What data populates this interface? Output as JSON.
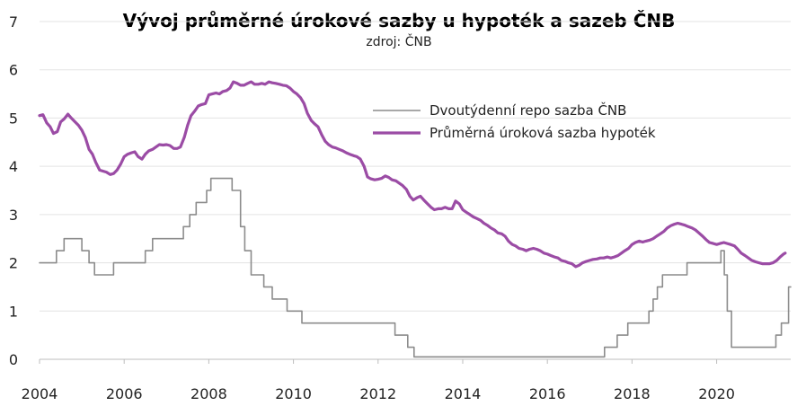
{
  "chart_data": {
    "type": "line",
    "title": "Vývoj průměrné úrokové sazby u hypoték a sazeb ČNB",
    "subtitle": "zdroj: ČNB",
    "xlabel": "",
    "ylabel": "",
    "xlim": [
      2004,
      2021.75
    ],
    "ylim": [
      0,
      7
    ],
    "x_ticks": [
      "2004",
      "2006",
      "2008",
      "2010",
      "2012",
      "2014",
      "2016",
      "2018",
      "2020"
    ],
    "y_ticks": [
      "0",
      "1",
      "2",
      "3",
      "4",
      "5",
      "6",
      "7"
    ],
    "grid": "horizontal",
    "legend_position": "top-right",
    "series": [
      {
        "name": "Dvoutýdenní repo sazba ČNB",
        "color": "#8c8c8c",
        "step": true,
        "points": [
          [
            2004.0,
            2.0
          ],
          [
            2004.4,
            2.25
          ],
          [
            2004.58,
            2.5
          ],
          [
            2005.0,
            2.25
          ],
          [
            2005.17,
            2.0
          ],
          [
            2005.3,
            1.75
          ],
          [
            2005.75,
            2.0
          ],
          [
            2006.5,
            2.25
          ],
          [
            2006.67,
            2.5
          ],
          [
            2007.4,
            2.75
          ],
          [
            2007.55,
            3.0
          ],
          [
            2007.7,
            3.25
          ],
          [
            2007.95,
            3.5
          ],
          [
            2008.05,
            3.75
          ],
          [
            2008.55,
            3.5
          ],
          [
            2008.75,
            2.75
          ],
          [
            2008.85,
            2.25
          ],
          [
            2009.0,
            1.75
          ],
          [
            2009.3,
            1.5
          ],
          [
            2009.5,
            1.25
          ],
          [
            2009.85,
            1.0
          ],
          [
            2010.2,
            0.75
          ],
          [
            2012.4,
            0.5
          ],
          [
            2012.7,
            0.25
          ],
          [
            2012.85,
            0.05
          ],
          [
            2017.35,
            0.25
          ],
          [
            2017.65,
            0.5
          ],
          [
            2017.9,
            0.75
          ],
          [
            2018.4,
            1.0
          ],
          [
            2018.5,
            1.25
          ],
          [
            2018.6,
            1.5
          ],
          [
            2018.72,
            1.75
          ],
          [
            2019.3,
            2.0
          ],
          [
            2020.1,
            2.25
          ],
          [
            2020.18,
            1.75
          ],
          [
            2020.25,
            1.0
          ],
          [
            2020.35,
            0.25
          ],
          [
            2021.4,
            0.5
          ],
          [
            2021.53,
            0.75
          ],
          [
            2021.7,
            1.5
          ]
        ]
      },
      {
        "name": "Průměrná úroková sazba hypoték",
        "color": "#9b4ca5",
        "step": false,
        "points": [
          [
            2004.0,
            5.05
          ],
          [
            2004.08,
            5.07
          ],
          [
            2004.17,
            4.9
          ],
          [
            2004.25,
            4.82
          ],
          [
            2004.33,
            4.68
          ],
          [
            2004.42,
            4.72
          ],
          [
            2004.5,
            4.92
          ],
          [
            2004.58,
            4.98
          ],
          [
            2004.67,
            5.08
          ],
          [
            2004.75,
            5.0
          ],
          [
            2004.83,
            4.93
          ],
          [
            2004.92,
            4.85
          ],
          [
            2005.0,
            4.75
          ],
          [
            2005.08,
            4.6
          ],
          [
            2005.17,
            4.35
          ],
          [
            2005.25,
            4.25
          ],
          [
            2005.33,
            4.08
          ],
          [
            2005.42,
            3.92
          ],
          [
            2005.5,
            3.9
          ],
          [
            2005.58,
            3.88
          ],
          [
            2005.67,
            3.83
          ],
          [
            2005.75,
            3.85
          ],
          [
            2005.83,
            3.92
          ],
          [
            2005.92,
            4.05
          ],
          [
            2006.0,
            4.2
          ],
          [
            2006.08,
            4.25
          ],
          [
            2006.17,
            4.28
          ],
          [
            2006.25,
            4.3
          ],
          [
            2006.33,
            4.2
          ],
          [
            2006.42,
            4.15
          ],
          [
            2006.5,
            4.25
          ],
          [
            2006.58,
            4.32
          ],
          [
            2006.67,
            4.35
          ],
          [
            2006.75,
            4.4
          ],
          [
            2006.83,
            4.45
          ],
          [
            2006.92,
            4.44
          ],
          [
            2007.0,
            4.45
          ],
          [
            2007.08,
            4.43
          ],
          [
            2007.17,
            4.37
          ],
          [
            2007.25,
            4.37
          ],
          [
            2007.33,
            4.4
          ],
          [
            2007.42,
            4.6
          ],
          [
            2007.5,
            4.85
          ],
          [
            2007.58,
            5.05
          ],
          [
            2007.67,
            5.15
          ],
          [
            2007.75,
            5.25
          ],
          [
            2007.83,
            5.28
          ],
          [
            2007.92,
            5.3
          ],
          [
            2008.0,
            5.48
          ],
          [
            2008.08,
            5.5
          ],
          [
            2008.17,
            5.52
          ],
          [
            2008.25,
            5.5
          ],
          [
            2008.33,
            5.55
          ],
          [
            2008.42,
            5.57
          ],
          [
            2008.5,
            5.62
          ],
          [
            2008.58,
            5.75
          ],
          [
            2008.67,
            5.72
          ],
          [
            2008.75,
            5.68
          ],
          [
            2008.83,
            5.68
          ],
          [
            2008.92,
            5.72
          ],
          [
            2009.0,
            5.75
          ],
          [
            2009.08,
            5.7
          ],
          [
            2009.17,
            5.7
          ],
          [
            2009.25,
            5.72
          ],
          [
            2009.33,
            5.7
          ],
          [
            2009.42,
            5.75
          ],
          [
            2009.5,
            5.73
          ],
          [
            2009.58,
            5.72
          ],
          [
            2009.67,
            5.7
          ],
          [
            2009.75,
            5.68
          ],
          [
            2009.83,
            5.67
          ],
          [
            2009.92,
            5.62
          ],
          [
            2010.0,
            5.55
          ],
          [
            2010.08,
            5.5
          ],
          [
            2010.17,
            5.42
          ],
          [
            2010.25,
            5.3
          ],
          [
            2010.33,
            5.1
          ],
          [
            2010.42,
            4.95
          ],
          [
            2010.5,
            4.88
          ],
          [
            2010.58,
            4.82
          ],
          [
            2010.67,
            4.65
          ],
          [
            2010.75,
            4.52
          ],
          [
            2010.83,
            4.45
          ],
          [
            2010.92,
            4.4
          ],
          [
            2011.0,
            4.38
          ],
          [
            2011.08,
            4.35
          ],
          [
            2011.17,
            4.32
          ],
          [
            2011.25,
            4.28
          ],
          [
            2011.33,
            4.25
          ],
          [
            2011.42,
            4.22
          ],
          [
            2011.5,
            4.2
          ],
          [
            2011.58,
            4.15
          ],
          [
            2011.67,
            4.0
          ],
          [
            2011.75,
            3.78
          ],
          [
            2011.83,
            3.74
          ],
          [
            2011.92,
            3.72
          ],
          [
            2012.0,
            3.73
          ],
          [
            2012.08,
            3.75
          ],
          [
            2012.17,
            3.8
          ],
          [
            2012.25,
            3.77
          ],
          [
            2012.33,
            3.72
          ],
          [
            2012.42,
            3.7
          ],
          [
            2012.5,
            3.65
          ],
          [
            2012.58,
            3.6
          ],
          [
            2012.67,
            3.52
          ],
          [
            2012.75,
            3.38
          ],
          [
            2012.83,
            3.3
          ],
          [
            2012.92,
            3.35
          ],
          [
            2013.0,
            3.38
          ],
          [
            2013.08,
            3.3
          ],
          [
            2013.17,
            3.22
          ],
          [
            2013.25,
            3.15
          ],
          [
            2013.33,
            3.1
          ],
          [
            2013.42,
            3.12
          ],
          [
            2013.5,
            3.12
          ],
          [
            2013.58,
            3.15
          ],
          [
            2013.67,
            3.12
          ],
          [
            2013.75,
            3.12
          ],
          [
            2013.83,
            3.28
          ],
          [
            2013.92,
            3.22
          ],
          [
            2014.0,
            3.1
          ],
          [
            2014.08,
            3.05
          ],
          [
            2014.17,
            3.0
          ],
          [
            2014.25,
            2.95
          ],
          [
            2014.33,
            2.92
          ],
          [
            2014.42,
            2.88
          ],
          [
            2014.5,
            2.82
          ],
          [
            2014.58,
            2.78
          ],
          [
            2014.67,
            2.72
          ],
          [
            2014.75,
            2.68
          ],
          [
            2014.83,
            2.62
          ],
          [
            2014.92,
            2.6
          ],
          [
            2015.0,
            2.55
          ],
          [
            2015.08,
            2.45
          ],
          [
            2015.17,
            2.38
          ],
          [
            2015.25,
            2.35
          ],
          [
            2015.33,
            2.3
          ],
          [
            2015.42,
            2.28
          ],
          [
            2015.5,
            2.25
          ],
          [
            2015.58,
            2.28
          ],
          [
            2015.67,
            2.3
          ],
          [
            2015.75,
            2.28
          ],
          [
            2015.83,
            2.25
          ],
          [
            2015.92,
            2.2
          ],
          [
            2016.0,
            2.18
          ],
          [
            2016.08,
            2.15
          ],
          [
            2016.17,
            2.12
          ],
          [
            2016.25,
            2.1
          ],
          [
            2016.33,
            2.05
          ],
          [
            2016.42,
            2.03
          ],
          [
            2016.5,
            2.0
          ],
          [
            2016.58,
            1.98
          ],
          [
            2016.67,
            1.92
          ],
          [
            2016.75,
            1.95
          ],
          [
            2016.83,
            2.0
          ],
          [
            2016.92,
            2.03
          ],
          [
            2017.0,
            2.05
          ],
          [
            2017.08,
            2.07
          ],
          [
            2017.17,
            2.08
          ],
          [
            2017.25,
            2.1
          ],
          [
            2017.33,
            2.1
          ],
          [
            2017.42,
            2.12
          ],
          [
            2017.5,
            2.1
          ],
          [
            2017.58,
            2.12
          ],
          [
            2017.67,
            2.15
          ],
          [
            2017.75,
            2.2
          ],
          [
            2017.83,
            2.25
          ],
          [
            2017.92,
            2.3
          ],
          [
            2018.0,
            2.38
          ],
          [
            2018.08,
            2.42
          ],
          [
            2018.17,
            2.45
          ],
          [
            2018.25,
            2.43
          ],
          [
            2018.33,
            2.45
          ],
          [
            2018.42,
            2.47
          ],
          [
            2018.5,
            2.5
          ],
          [
            2018.58,
            2.55
          ],
          [
            2018.67,
            2.6
          ],
          [
            2018.75,
            2.65
          ],
          [
            2018.83,
            2.72
          ],
          [
            2018.92,
            2.77
          ],
          [
            2019.0,
            2.8
          ],
          [
            2019.08,
            2.82
          ],
          [
            2019.17,
            2.8
          ],
          [
            2019.25,
            2.78
          ],
          [
            2019.33,
            2.75
          ],
          [
            2019.42,
            2.72
          ],
          [
            2019.5,
            2.68
          ],
          [
            2019.58,
            2.62
          ],
          [
            2019.67,
            2.55
          ],
          [
            2019.75,
            2.48
          ],
          [
            2019.83,
            2.42
          ],
          [
            2019.92,
            2.4
          ],
          [
            2020.0,
            2.38
          ],
          [
            2020.08,
            2.4
          ],
          [
            2020.17,
            2.42
          ],
          [
            2020.25,
            2.4
          ],
          [
            2020.33,
            2.38
          ],
          [
            2020.42,
            2.35
          ],
          [
            2020.5,
            2.28
          ],
          [
            2020.58,
            2.2
          ],
          [
            2020.67,
            2.15
          ],
          [
            2020.75,
            2.1
          ],
          [
            2020.83,
            2.05
          ],
          [
            2020.92,
            2.02
          ],
          [
            2021.0,
            2.0
          ],
          [
            2021.08,
            1.98
          ],
          [
            2021.17,
            1.98
          ],
          [
            2021.25,
            1.98
          ],
          [
            2021.33,
            2.0
          ],
          [
            2021.42,
            2.05
          ],
          [
            2021.5,
            2.12
          ],
          [
            2021.58,
            2.18
          ],
          [
            2021.62,
            2.2
          ]
        ]
      }
    ]
  }
}
